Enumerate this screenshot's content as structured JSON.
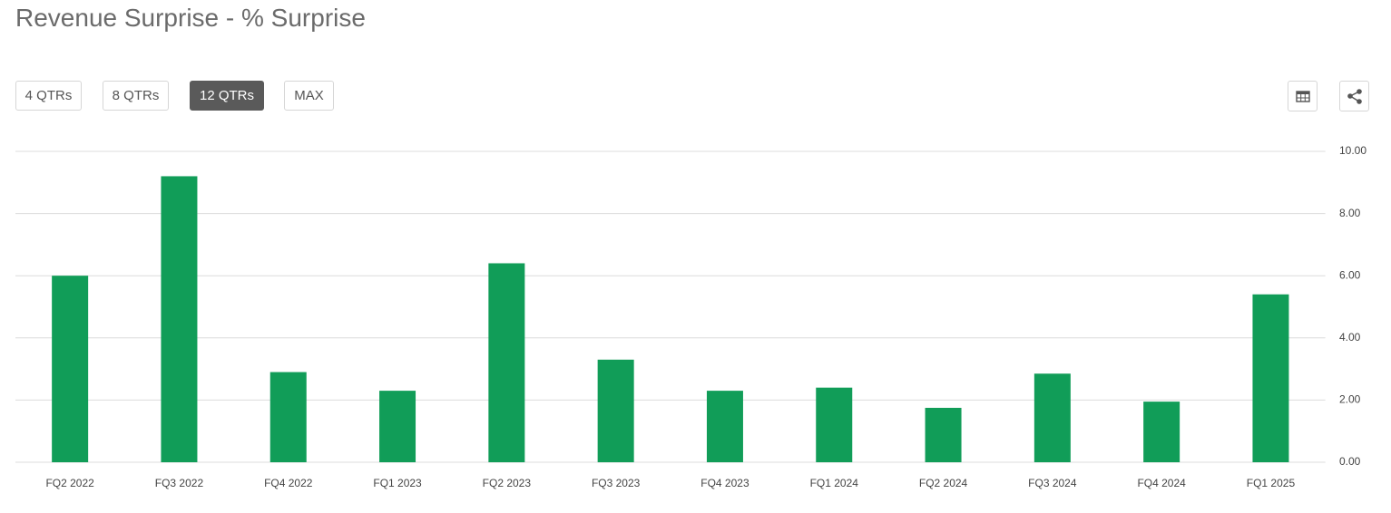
{
  "title": "Revenue Surprise - % Surprise",
  "range_buttons": [
    "4 QTRs",
    "8 QTRs",
    "12 QTRs",
    "MAX"
  ],
  "chart_data": {
    "type": "bar",
    "categories": [
      "FQ2 2022",
      "FQ3 2022",
      "FQ4 2022",
      "FQ1 2023",
      "FQ2 2023",
      "FQ3 2023",
      "FQ4 2023",
      "FQ1 2024",
      "FQ2 2024",
      "FQ3 2024",
      "FQ4 2024",
      "FQ1 2025"
    ],
    "values": [
      6.0,
      9.2,
      2.9,
      2.3,
      6.4,
      3.3,
      2.3,
      2.4,
      1.75,
      2.85,
      1.95,
      5.4
    ],
    "color": "#119d58",
    "ylim": [
      0,
      10
    ],
    "yticks": [
      {
        "value": 0,
        "label": "0.00"
      },
      {
        "value": 2,
        "label": "2.00"
      },
      {
        "value": 4,
        "label": "4.00"
      },
      {
        "value": 6,
        "label": "6.00"
      },
      {
        "value": 8,
        "label": "8.00"
      },
      {
        "value": 10,
        "label": "10.00"
      }
    ],
    "grid": true
  }
}
